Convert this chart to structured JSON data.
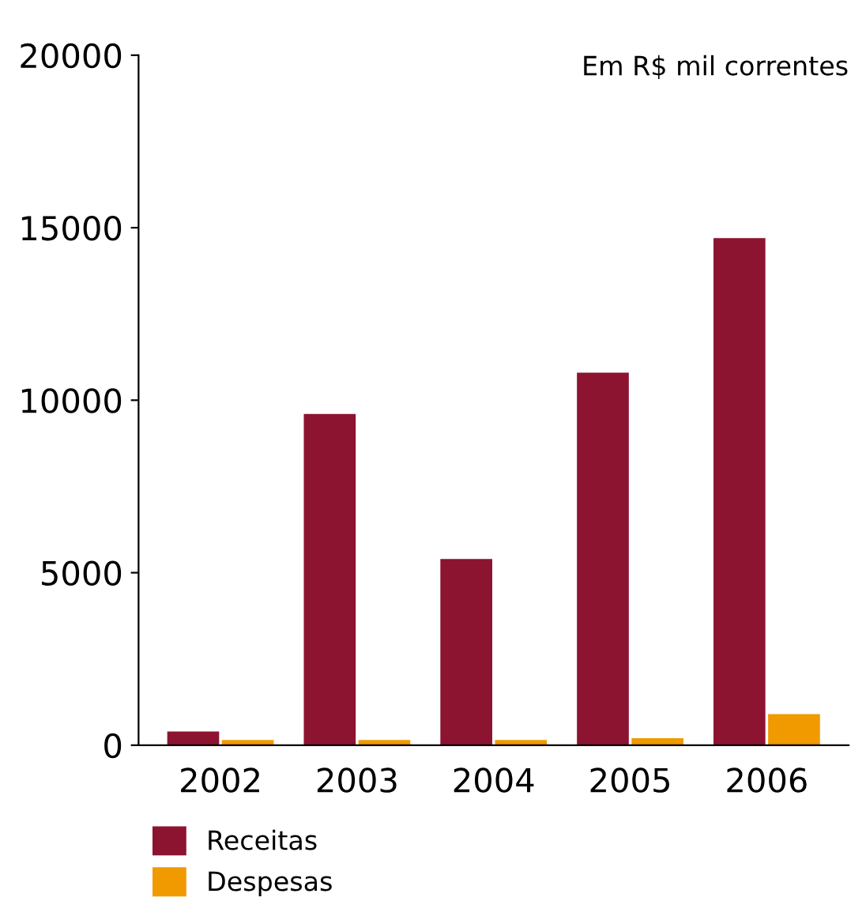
{
  "chart_data": {
    "type": "bar",
    "categories": [
      "2002",
      "2003",
      "2004",
      "2005",
      "2006"
    ],
    "series": [
      {
        "name": "Receitas",
        "color": "#8c1431",
        "values": [
          400,
          9600,
          5400,
          10800,
          14700
        ]
      },
      {
        "name": "Despesas",
        "color": "#f09a00",
        "values": [
          150,
          150,
          150,
          200,
          900
        ]
      }
    ],
    "ylim": [
      0,
      20000
    ],
    "yticks": [
      0,
      5000,
      10000,
      15000,
      20000
    ],
    "grid": false,
    "legend": "bottom left",
    "annotations": [
      "Em R$ mil correntes"
    ]
  }
}
